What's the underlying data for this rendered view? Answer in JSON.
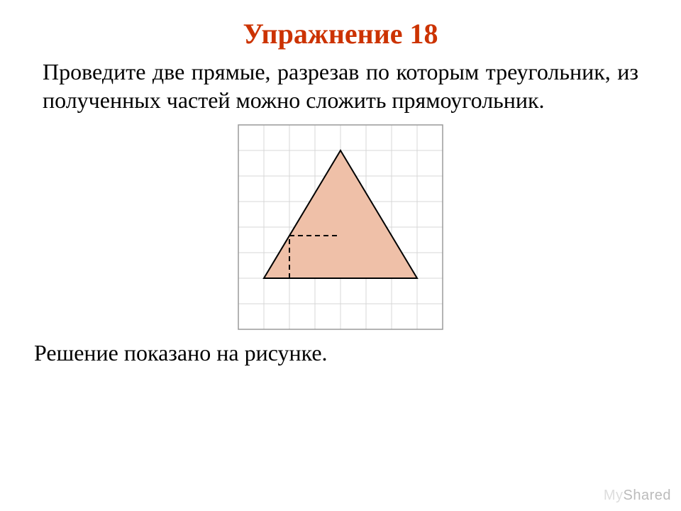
{
  "title": "Упражнение 18",
  "problem": "Проведите две прямые, разрезав по которым треугольник, из полученных частей можно сложить прямоугольник.",
  "solution": "Решение показано на рисунке.",
  "watermark": {
    "part1": "My",
    "part2": "Shared"
  },
  "figure": {
    "type": "geometry-diagram",
    "cell": 36,
    "cols": 8,
    "rows": 8,
    "border_color": "#9a9a9a",
    "grid_color": "#d7d7d7",
    "grid_width": 1,
    "background_color": "#ffffff",
    "triangle": {
      "fill": "#efc0a8",
      "stroke": "#000000",
      "stroke_width": 2,
      "points_cells": [
        [
          4,
          1
        ],
        [
          7,
          6
        ],
        [
          1,
          6
        ]
      ]
    },
    "cut_lines": {
      "stroke": "#000000",
      "stroke_width": 2,
      "dash": "7,5",
      "segments": [
        {
          "from_cells": [
            2,
            6
          ],
          "to_cells": [
            2,
            4.333
          ]
        },
        {
          "from_cells": [
            2,
            4.333
          ],
          "to_cells": [
            4,
            4.333
          ]
        }
      ]
    }
  },
  "colors": {
    "title": "#cc3300",
    "text": "#000000",
    "page_bg": "#ffffff"
  },
  "typography": {
    "title_fontsize": 40,
    "body_fontsize": 32,
    "font_family": "Times New Roman"
  }
}
